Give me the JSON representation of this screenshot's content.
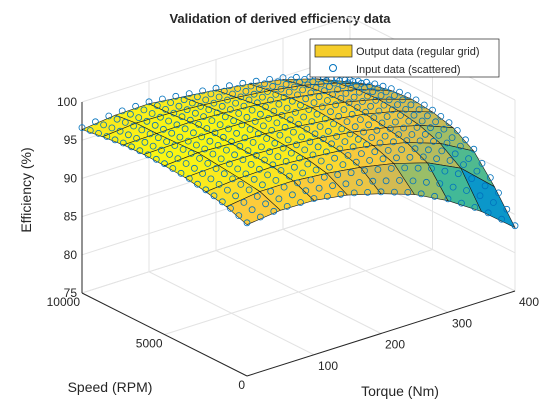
{
  "chart_data": {
    "type": "surface",
    "title": "Validation of derived efficiency data",
    "xlabel": "Torque (Nm)",
    "ylabel": "Speed (RPM)",
    "zlabel": "Efficiency (%)",
    "xlim": [
      0,
      400
    ],
    "ylim": [
      0,
      10000
    ],
    "zlim": [
      75,
      100
    ],
    "xticks": [
      "100",
      "200",
      "300",
      "400"
    ],
    "yticks": [
      "0",
      "5000",
      "10000"
    ],
    "zticks": [
      "75",
      "80",
      "85",
      "90",
      "95",
      "100"
    ],
    "grid": true,
    "legend_position": "top-right",
    "series": [
      {
        "name": "Output data (regular grid)",
        "kind": "surface",
        "color": "#f5cd2b",
        "torque_grid": [
          0,
          50,
          100,
          150,
          200,
          250,
          300,
          350,
          400
        ],
        "speed_grid": [
          0,
          1250,
          2500,
          3750,
          5000,
          6250,
          7500,
          8750,
          10000
        ],
        "efficiency": [
          [
            94.8,
            95.3,
            95.2,
            94.5,
            93.3,
            91.8,
            89.6,
            86.8,
            83.3
          ],
          [
            95.8,
            96.4,
            96.4,
            96.0,
            95.4,
            94.5,
            93.2,
            91.1,
            87.3
          ],
          [
            96.4,
            96.8,
            96.9,
            96.6,
            96.2,
            95.5,
            94.5,
            93.0,
            90.6
          ],
          [
            96.9,
            97.1,
            97.1,
            96.9,
            96.5,
            95.9,
            95.1,
            94.0,
            92.3
          ],
          [
            97.1,
            97.4,
            97.2,
            97.1,
            96.7,
            96.2,
            95.5,
            94.5,
            93.0
          ],
          [
            97.2,
            97.3,
            97.3,
            97.2,
            96.8,
            96.4,
            95.7,
            94.7,
            93.3
          ],
          [
            97.1,
            97.2,
            97.3,
            97.1,
            96.8,
            96.3,
            95.6,
            94.6,
            93.1
          ],
          [
            96.8,
            97.2,
            97.1,
            96.8,
            96.4,
            95.9,
            95.2,
            94.1,
            92.5
          ],
          [
            96.4,
            96.9,
            97.0,
            96.5,
            96.0,
            95.4,
            94.6,
            93.3,
            91.5
          ]
        ]
      },
      {
        "name": "Input data (scattered)",
        "kind": "scatter3",
        "marker": "o",
        "color": "#0072bd"
      }
    ]
  }
}
